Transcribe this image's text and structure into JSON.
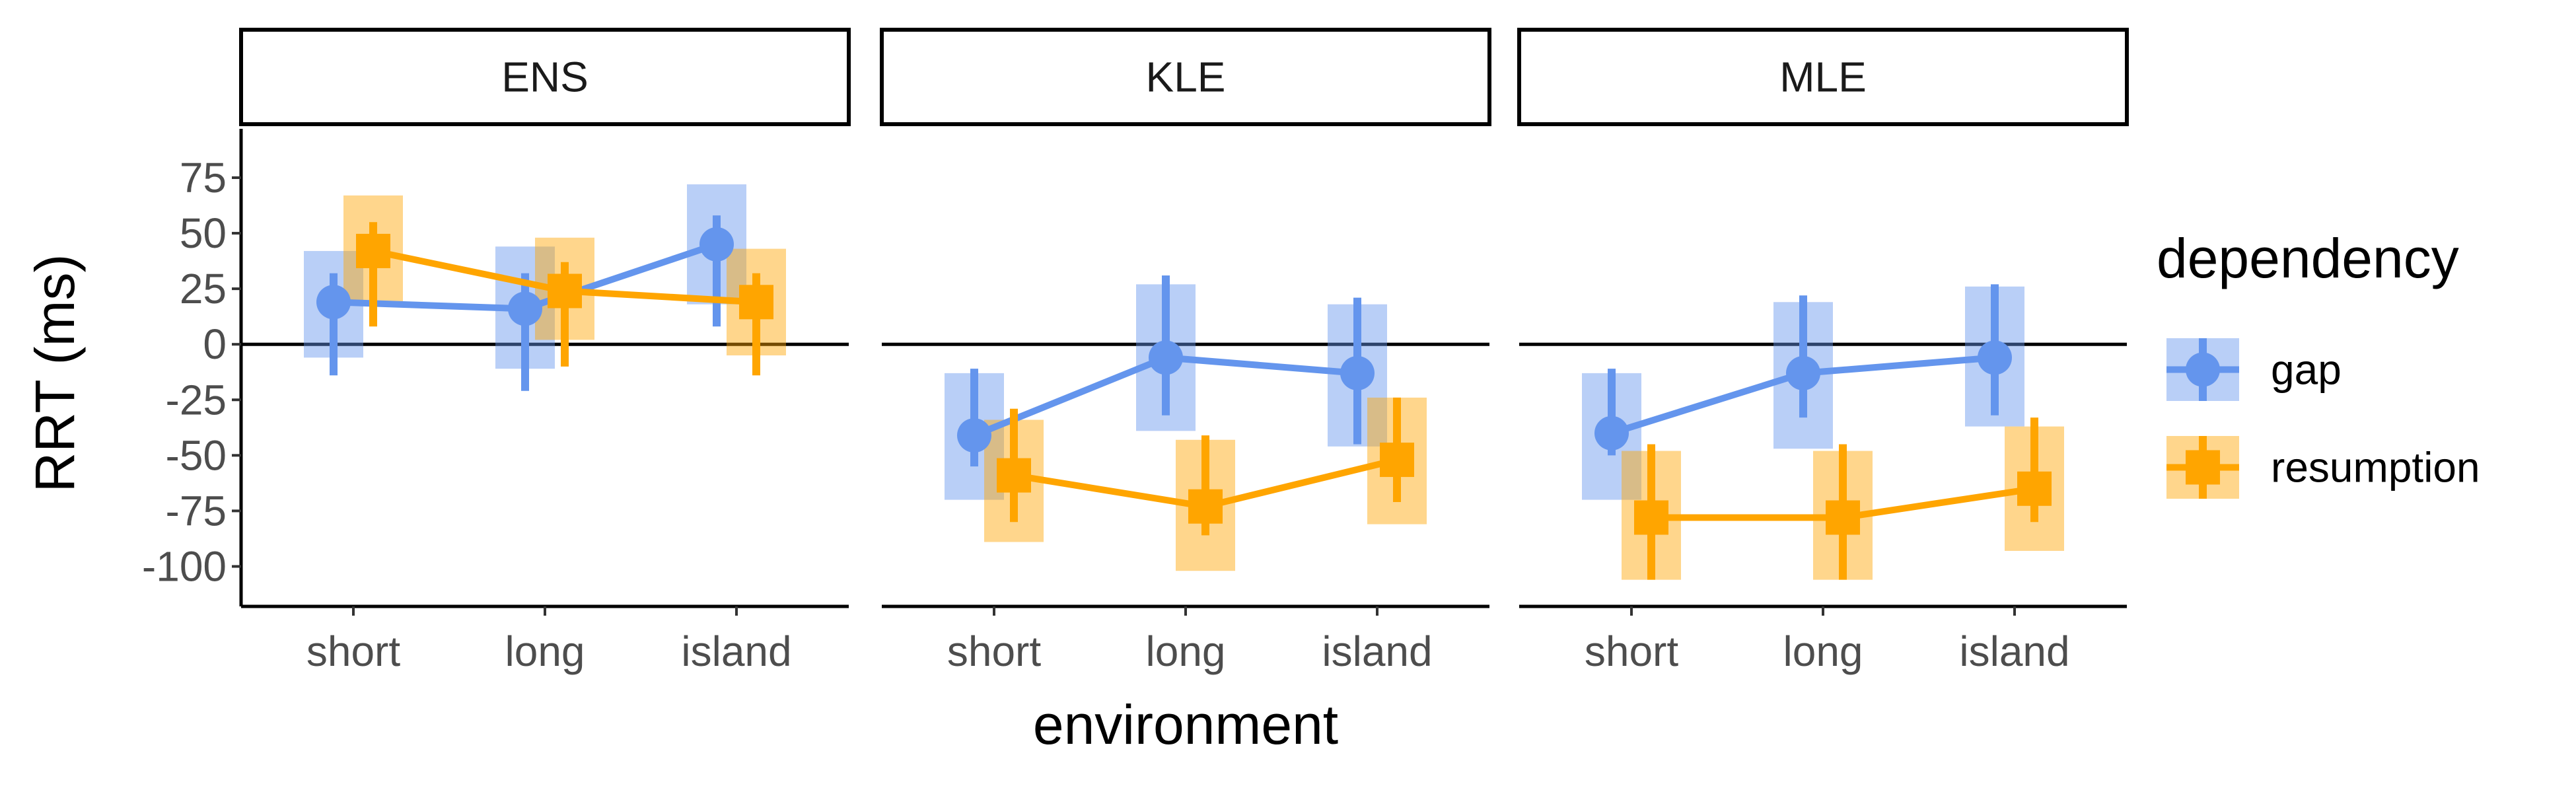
{
  "chart_data": {
    "type": "line",
    "ylabel": "RRT (ms)",
    "xlabel": "environment",
    "categories": [
      "short",
      "long",
      "island"
    ],
    "ylim": [
      -118,
      97
    ],
    "yticks": [
      75,
      50,
      25,
      0,
      -25,
      -50,
      -75,
      -100
    ],
    "ytick_labels": [
      "75",
      "50",
      "25",
      "0",
      "-25",
      "-50",
      "-75",
      "-100"
    ],
    "reference_line": 0,
    "grid": false,
    "legend": {
      "title": "dependency",
      "placement": "right",
      "entries": [
        "gap",
        "resumption"
      ]
    },
    "series_styles": [
      {
        "name": "gap",
        "color": "#6495ED",
        "marker": "circle"
      },
      {
        "name": "resumption",
        "color": "#FFA500",
        "marker": "square"
      }
    ],
    "panels": [
      {
        "title": "ENS",
        "series": [
          {
            "name": "gap",
            "values": [
              19,
              16,
              45
            ],
            "ci_low": [
              -14,
              -21,
              8
            ],
            "ci_high": [
              32,
              32,
              58
            ],
            "band_low": [
              -6,
              -11,
              18
            ],
            "band_high": [
              42,
              44,
              72
            ]
          },
          {
            "name": "resumption",
            "values": [
              42,
              24,
              19
            ],
            "ci_low": [
              8,
              -10,
              -14
            ],
            "ci_high": [
              55,
              37,
              32
            ],
            "band_low": [
              19,
              2,
              -5
            ],
            "band_high": [
              67,
              48,
              43
            ]
          }
        ]
      },
      {
        "title": "KLE",
        "series": [
          {
            "name": "gap",
            "values": [
              -41,
              -6,
              -13
            ],
            "ci_low": [
              -55,
              -32,
              -45
            ],
            "ci_high": [
              -11,
              31,
              21
            ],
            "band_low": [
              -70,
              -39,
              -46
            ],
            "band_high": [
              -13,
              27,
              18
            ]
          },
          {
            "name": "resumption",
            "values": [
              -59,
              -73,
              -52
            ],
            "ci_low": [
              -80,
              -86,
              -71
            ],
            "ci_high": [
              -29,
              -41,
              -24
            ],
            "band_low": [
              -89,
              -102,
              -81
            ],
            "band_high": [
              -34,
              -43,
              -24
            ]
          }
        ]
      },
      {
        "title": "MLE",
        "series": [
          {
            "name": "gap",
            "values": [
              -40,
              -13,
              -6
            ],
            "ci_low": [
              -50,
              -33,
              -32
            ],
            "ci_high": [
              -11,
              22,
              27
            ],
            "band_low": [
              -70,
              -47,
              -37
            ],
            "band_high": [
              -13,
              19,
              26
            ]
          },
          {
            "name": "resumption",
            "values": [
              -78,
              -78,
              -65
            ],
            "ci_low": [
              -106,
              -106,
              -80
            ],
            "ci_high": [
              -45,
              -45,
              -33
            ],
            "band_low": [
              -106,
              -106,
              -93
            ],
            "band_high": [
              -48,
              -48,
              -37
            ]
          }
        ]
      }
    ]
  }
}
